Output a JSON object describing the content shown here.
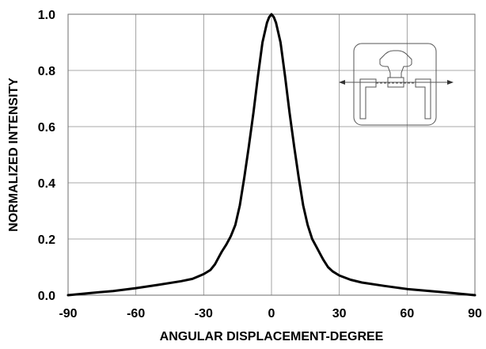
{
  "chart_data": {
    "type": "line",
    "xlabel": "ANGULAR DISPLACEMENT-DEGREE",
    "ylabel": "NORMALIZED INTENSITY",
    "xlim": [
      -90,
      90
    ],
    "ylim": [
      0,
      1.0
    ],
    "x_ticks": [
      "-90",
      "-60",
      "-30",
      "0",
      "30",
      "60",
      "90"
    ],
    "y_ticks": [
      "0.0",
      "0.2",
      "0.4",
      "0.6",
      "0.8",
      "1.0"
    ],
    "grid": true,
    "series": [
      {
        "x": [
          -90,
          -80,
          -70,
          -60,
          -50,
          -40,
          -35,
          -30,
          -27,
          -25,
          -23,
          -22,
          -20,
          -18,
          -16,
          -14,
          -12,
          -10,
          -8,
          -6,
          -4,
          -2,
          -1,
          0,
          1,
          2,
          4,
          6,
          8,
          10,
          12,
          14,
          16,
          18,
          20,
          22,
          23,
          25,
          27,
          30,
          35,
          40,
          50,
          60,
          70,
          80,
          90
        ],
        "y": [
          0.0,
          0.008,
          0.015,
          0.025,
          0.037,
          0.05,
          0.058,
          0.075,
          0.09,
          0.11,
          0.14,
          0.155,
          0.18,
          0.21,
          0.25,
          0.32,
          0.42,
          0.53,
          0.65,
          0.78,
          0.9,
          0.97,
          0.99,
          1.0,
          0.99,
          0.97,
          0.9,
          0.78,
          0.65,
          0.53,
          0.42,
          0.32,
          0.25,
          0.2,
          0.17,
          0.14,
          0.125,
          0.1,
          0.085,
          0.07,
          0.055,
          0.045,
          0.033,
          0.022,
          0.015,
          0.008,
          0.0
        ]
      }
    ],
    "inset": "led-package-diagram"
  }
}
